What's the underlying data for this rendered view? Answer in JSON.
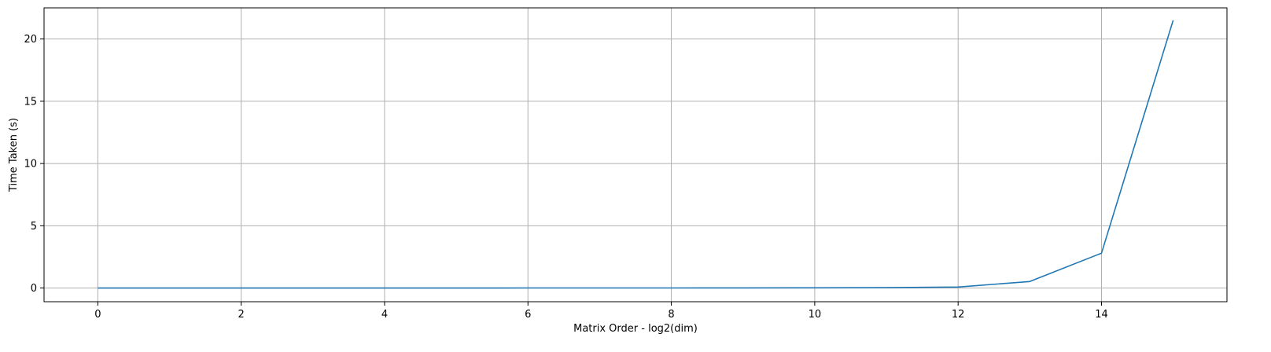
{
  "chart_data": {
    "type": "line",
    "title": "",
    "xlabel": "Matrix Order - log2(dim)",
    "ylabel": "Time Taken (s)",
    "xlim": [
      -0.75,
      15.75
    ],
    "ylim": [
      -1.1,
      22.5
    ],
    "xticks": [
      0,
      2,
      4,
      6,
      8,
      10,
      12,
      14
    ],
    "yticks": [
      0,
      5,
      10,
      15,
      20
    ],
    "grid": true,
    "series": [
      {
        "color": "#1f77b4",
        "x": [
          0,
          1,
          2,
          3,
          4,
          5,
          6,
          7,
          8,
          9,
          10,
          11,
          12,
          13,
          14,
          15
        ],
        "y": [
          0,
          0,
          0,
          0,
          0,
          0,
          0.002,
          0.003,
          0.005,
          0.008,
          0.015,
          0.03,
          0.08,
          0.52,
          2.8,
          21.5
        ]
      }
    ]
  }
}
